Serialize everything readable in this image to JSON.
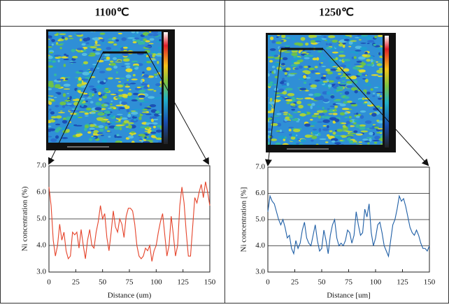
{
  "chart_data": [
    {
      "type": "line",
      "title": "1100℃",
      "xlabel": "Distance (um)",
      "ylabel": "Ni concentration (%)",
      "xlim": [
        0,
        150
      ],
      "ylim": [
        3,
        7
      ],
      "xticks": [
        0,
        25,
        50,
        75,
        100,
        125,
        150
      ],
      "yticks": [
        {
          "value": 3,
          "label": "3.0"
        },
        {
          "value": 4,
          "label": "4.0"
        },
        {
          "value": 5,
          "label": "5.0"
        },
        {
          "value": 6,
          "label": "6.0"
        },
        {
          "value": 7,
          "label": "7.0"
        }
      ],
      "grid": true,
      "x": [
        0,
        2,
        4,
        6,
        8,
        10,
        12,
        14,
        16,
        18,
        20,
        22,
        24,
        26,
        28,
        30,
        32,
        34,
        36,
        38,
        40,
        42,
        44,
        46,
        48,
        50,
        52,
        54,
        56,
        58,
        60,
        62,
        64,
        66,
        68,
        70,
        72,
        74,
        76,
        78,
        80,
        82,
        84,
        86,
        88,
        90,
        92,
        94,
        96,
        98,
        100,
        102,
        104,
        106,
        108,
        110,
        112,
        114,
        116,
        118,
        120,
        122,
        124,
        126,
        128,
        130,
        132,
        134,
        136,
        138,
        140,
        142,
        144,
        146,
        148,
        150
      ],
      "series": [
        {
          "color": "#e5432a",
          "values": [
            6.2,
            5.5,
            4.2,
            3.6,
            4.0,
            4.8,
            4.2,
            4.5,
            3.8,
            3.5,
            3.6,
            4.5,
            4.4,
            4.5,
            3.9,
            4.6,
            4.0,
            3.5,
            4.2,
            4.6,
            4.0,
            3.9,
            4.5,
            4.9,
            5.5,
            5.0,
            5.2,
            4.3,
            3.8,
            4.5,
            5.3,
            4.7,
            4.5,
            5.0,
            4.8,
            4.3,
            5.1,
            5.4,
            5.4,
            5.3,
            4.8,
            4.0,
            3.6,
            3.5,
            3.6,
            3.9,
            3.8,
            4.0,
            3.4,
            3.8,
            4.0,
            4.5,
            4.9,
            5.2,
            4.4,
            3.6,
            4.0,
            5.1,
            4.4,
            3.6,
            4.0,
            5.5,
            6.2,
            5.6,
            4.5,
            3.6,
            3.6,
            4.7,
            5.8,
            5.6,
            6.0,
            6.3,
            5.8,
            6.4,
            6.0,
            5.5
          ]
        }
      ]
    },
    {
      "type": "line",
      "title": "1250℃",
      "xlabel": "Distance [um]",
      "ylabel": "Ni concentration [%]",
      "xlim": [
        0,
        150
      ],
      "ylim": [
        3,
        7
      ],
      "xticks": [
        0,
        25,
        50,
        75,
        100,
        125,
        150
      ],
      "yticks": [
        {
          "value": 3,
          "label": "3.0"
        },
        {
          "value": 4,
          "label": "4.0"
        },
        {
          "value": 5,
          "label": "5.0"
        },
        {
          "value": 6,
          "label": "6.0"
        },
        {
          "value": 7,
          "label": "7.0"
        }
      ],
      "grid": true,
      "x": [
        0,
        2,
        4,
        6,
        8,
        10,
        12,
        14,
        16,
        18,
        20,
        22,
        24,
        26,
        28,
        30,
        32,
        34,
        36,
        38,
        40,
        42,
        44,
        46,
        48,
        50,
        52,
        54,
        56,
        58,
        60,
        62,
        64,
        66,
        68,
        70,
        72,
        74,
        76,
        78,
        80,
        82,
        84,
        86,
        88,
        90,
        92,
        94,
        96,
        98,
        100,
        102,
        104,
        106,
        108,
        110,
        112,
        114,
        116,
        118,
        120,
        122,
        124,
        126,
        128,
        130,
        132,
        134,
        136,
        138,
        140,
        142,
        144,
        146,
        148,
        150
      ],
      "series": [
        {
          "color": "#1f5fa6",
          "values": [
            5.3,
            5.9,
            5.7,
            5.6,
            5.3,
            5.0,
            4.8,
            5.0,
            4.7,
            4.3,
            4.4,
            3.9,
            3.7,
            4.2,
            3.9,
            4.1,
            4.6,
            4.9,
            4.3,
            4.1,
            4.0,
            4.4,
            4.8,
            4.2,
            3.8,
            3.9,
            4.6,
            4.2,
            3.7,
            4.4,
            4.8,
            5.0,
            4.3,
            4.0,
            4.1,
            4.0,
            4.2,
            4.6,
            4.5,
            4.1,
            4.4,
            5.3,
            4.8,
            4.4,
            4.5,
            5.4,
            5.1,
            5.6,
            4.5,
            4.0,
            4.3,
            4.8,
            4.9,
            4.5,
            4.0,
            3.8,
            3.6,
            4.2,
            4.8,
            5.0,
            5.4,
            5.9,
            5.7,
            5.8,
            5.5,
            5.1,
            4.7,
            4.5,
            4.4,
            4.6,
            4.4,
            4.1,
            3.9,
            3.9,
            3.8,
            4.0
          ]
        }
      ]
    }
  ]
}
